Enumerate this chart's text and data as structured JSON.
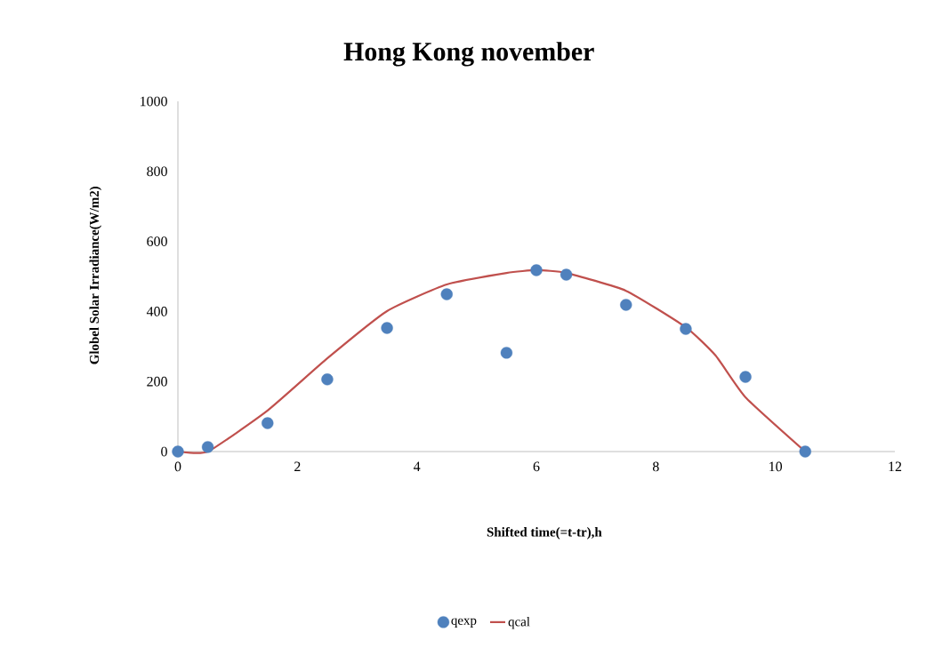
{
  "chart_data": {
    "type": "scatter",
    "title": "Hong Kong november",
    "xlabel": "Shifted time(=t-tr),h",
    "ylabel": "Globel Solar Irradiance(W/m2)",
    "xlim": [
      0,
      12
    ],
    "xticks": [
      0,
      2,
      4,
      6,
      8,
      10,
      12
    ],
    "ylim": [
      0,
      1000
    ],
    "yticks": [
      0,
      200,
      400,
      600,
      800,
      1000
    ],
    "legend": "bottom",
    "grid": false,
    "series": [
      {
        "name": "qexp",
        "marker": "circle",
        "color": "#4f81bd",
        "x": [
          0,
          0.5,
          1.5,
          2.5,
          3.5,
          4.5,
          5.5,
          6,
          6.5,
          7.5,
          8.5,
          9.5,
          10.5
        ],
        "values": [
          0,
          13,
          81,
          206,
          353,
          449,
          282,
          518,
          505,
          419,
          350,
          213,
          0
        ]
      },
      {
        "name": "qcal",
        "type": "line",
        "marker": "none",
        "line_style": "solid",
        "color": "#c0504d",
        "x": [
          0,
          0.5,
          1.5,
          2.5,
          3.5,
          4.5,
          5.5,
          6,
          6.5,
          7.5,
          8.5,
          9,
          9.5,
          10.5
        ],
        "values": [
          0,
          0,
          117,
          266,
          401,
          477,
          510,
          518,
          510,
          459,
          355,
          274,
          155,
          0
        ]
      }
    ]
  }
}
